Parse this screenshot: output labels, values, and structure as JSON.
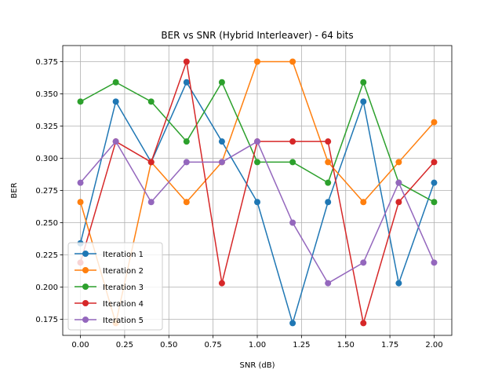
{
  "chart_data": {
    "type": "line",
    "title": "BER vs SNR (Hybrid Interleaver) - 64 bits",
    "xlabel": "SNR (dB)",
    "ylabel": "BER",
    "xlim": [
      -0.1,
      2.1
    ],
    "ylim": [
      0.1625,
      0.3875
    ],
    "xticks": [
      0.0,
      0.25,
      0.5,
      0.75,
      1.0,
      1.25,
      1.5,
      1.75,
      2.0
    ],
    "xtick_labels": [
      "0.00",
      "0.25",
      "0.50",
      "0.75",
      "1.00",
      "1.25",
      "1.50",
      "1.75",
      "2.00"
    ],
    "yticks": [
      0.175,
      0.2,
      0.225,
      0.25,
      0.275,
      0.3,
      0.325,
      0.35,
      0.375
    ],
    "ytick_labels": [
      "0.175",
      "0.200",
      "0.225",
      "0.250",
      "0.275",
      "0.300",
      "0.325",
      "0.350",
      "0.375"
    ],
    "grid": true,
    "legend_position": "lower-left",
    "x": [
      0.0,
      0.2,
      0.4,
      0.6,
      0.8,
      1.0,
      1.2,
      1.4,
      1.6,
      1.8,
      2.0
    ],
    "series": [
      {
        "name": "Iteration 1",
        "color": "#1f77b4",
        "values": [
          0.234,
          0.344,
          0.297,
          0.359,
          0.313,
          0.266,
          0.172,
          0.266,
          0.344,
          0.203,
          0.281
        ]
      },
      {
        "name": "Iteration 2",
        "color": "#ff7f0e",
        "values": [
          0.266,
          0.172,
          0.297,
          0.266,
          0.297,
          0.375,
          0.375,
          0.297,
          0.266,
          0.297,
          0.328
        ]
      },
      {
        "name": "Iteration 3",
        "color": "#2ca02c",
        "values": [
          0.344,
          0.359,
          0.344,
          0.313,
          0.359,
          0.297,
          0.297,
          0.281,
          0.359,
          0.281,
          0.266
        ]
      },
      {
        "name": "Iteration 4",
        "color": "#d62728",
        "values": [
          0.219,
          0.313,
          0.297,
          0.375,
          0.203,
          0.313,
          0.313,
          0.313,
          0.172,
          0.266,
          0.297
        ]
      },
      {
        "name": "Iteration 5",
        "color": "#9467bd",
        "values": [
          0.281,
          0.313,
          0.266,
          0.297,
          0.297,
          0.313,
          0.25,
          0.203,
          0.219,
          0.281,
          0.219
        ]
      }
    ]
  }
}
